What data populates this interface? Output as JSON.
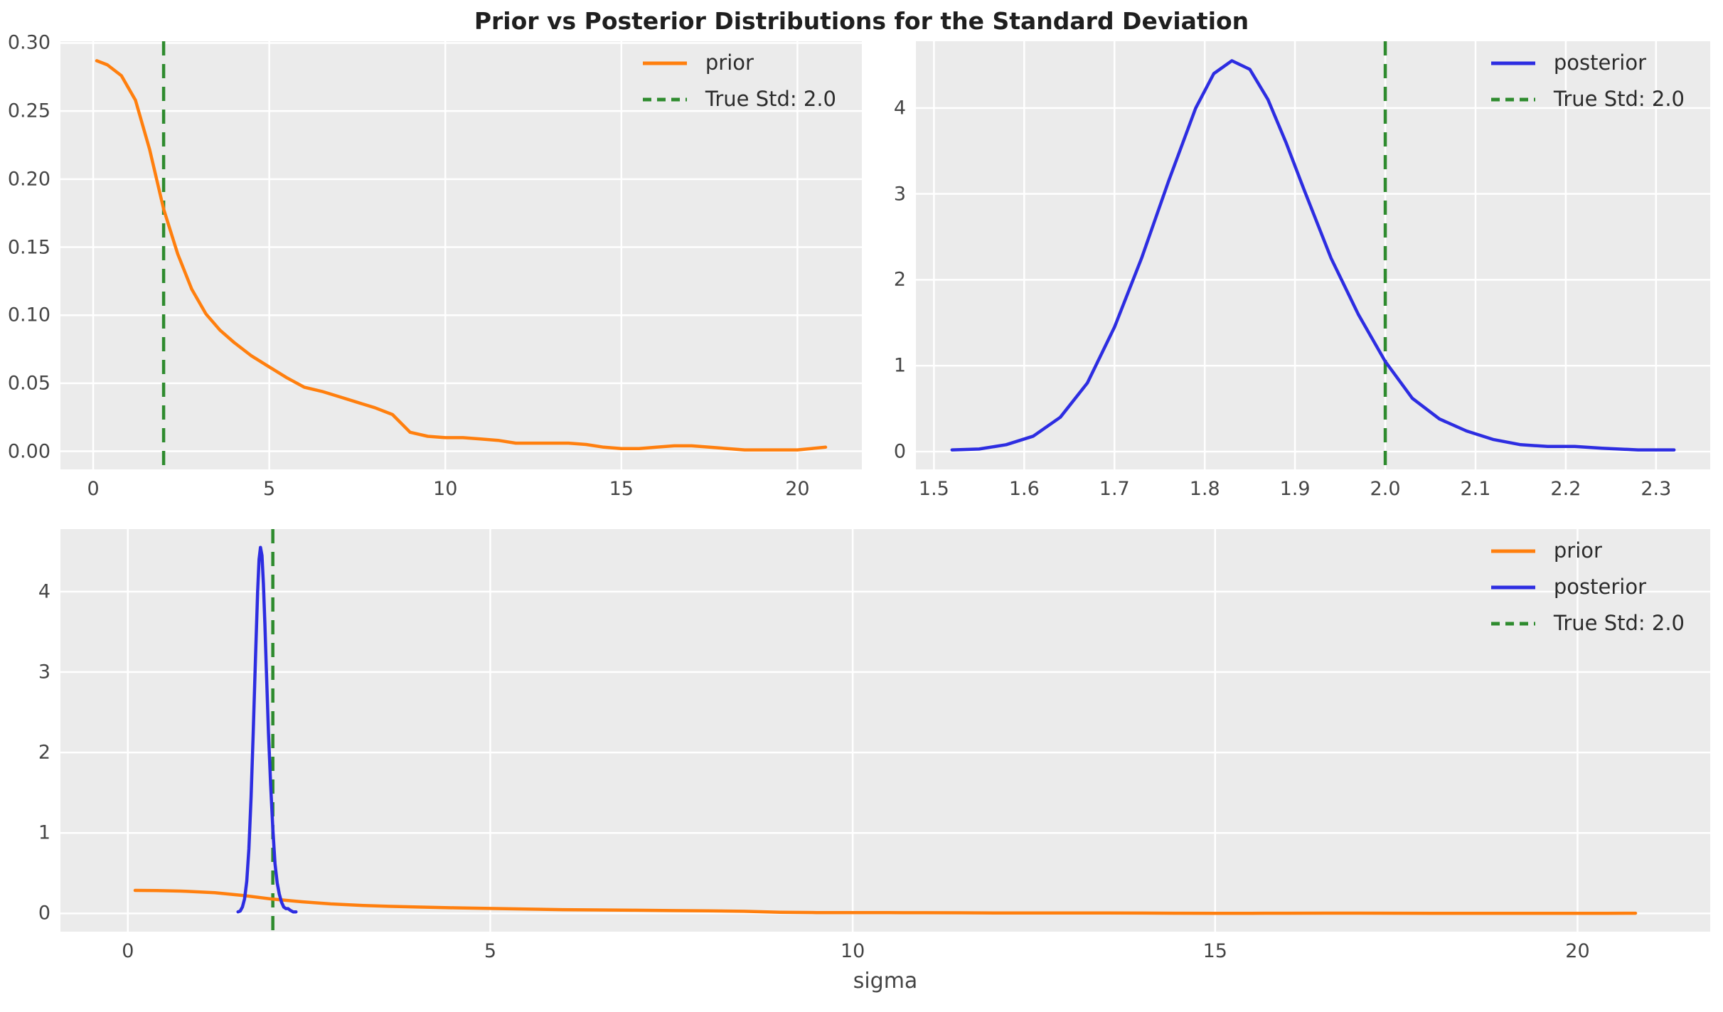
{
  "title": "Prior vs Posterior Distributions for the Standard Deviation",
  "chart_data": {
    "type": "line",
    "style": {
      "axes_bg": "#ebebeb",
      "grid_color": "#ffffff",
      "prior_color": "#ff7f0e",
      "posterior_color": "#2d2de1",
      "true_std_color": "#2e8b2e",
      "tick_color": "#454545"
    },
    "series_data": {
      "prior": {
        "x": [
          0.1,
          0.4,
          0.8,
          1.2,
          1.6,
          2.0,
          2.4,
          2.8,
          3.2,
          3.6,
          4.0,
          4.5,
          5.0,
          5.5,
          6.0,
          6.5,
          7.0,
          7.5,
          8.0,
          8.5,
          9.0,
          9.5,
          10.0,
          10.5,
          11.0,
          11.5,
          12.0,
          12.5,
          13.0,
          13.5,
          14.0,
          14.5,
          15.0,
          15.5,
          16.0,
          16.5,
          17.0,
          17.5,
          18.0,
          18.5,
          19.0,
          19.5,
          20.0,
          20.4,
          20.8
        ],
        "y": [
          0.287,
          0.284,
          0.276,
          0.258,
          0.222,
          0.178,
          0.145,
          0.119,
          0.101,
          0.089,
          0.08,
          0.07,
          0.062,
          0.054,
          0.047,
          0.044,
          0.04,
          0.036,
          0.032,
          0.027,
          0.014,
          0.011,
          0.01,
          0.01,
          0.009,
          0.008,
          0.006,
          0.006,
          0.006,
          0.006,
          0.005,
          0.003,
          0.002,
          0.002,
          0.003,
          0.004,
          0.004,
          0.003,
          0.002,
          0.001,
          0.001,
          0.001,
          0.001,
          0.002,
          0.003
        ]
      },
      "posterior": {
        "x": [
          1.52,
          1.55,
          1.58,
          1.61,
          1.64,
          1.67,
          1.7,
          1.73,
          1.76,
          1.79,
          1.81,
          1.83,
          1.85,
          1.87,
          1.89,
          1.91,
          1.94,
          1.97,
          2.0,
          2.03,
          2.06,
          2.09,
          2.12,
          2.15,
          2.18,
          2.21,
          2.24,
          2.28,
          2.32
        ],
        "y": [
          0.02,
          0.03,
          0.08,
          0.18,
          0.4,
          0.8,
          1.45,
          2.25,
          3.15,
          4.0,
          4.4,
          4.55,
          4.45,
          4.1,
          3.6,
          3.05,
          2.25,
          1.6,
          1.05,
          0.62,
          0.38,
          0.24,
          0.14,
          0.08,
          0.06,
          0.06,
          0.04,
          0.02,
          0.02
        ]
      }
    },
    "charts": [
      {
        "name": "prior-plot",
        "xlim": [
          -0.93,
          21.83
        ],
        "ylim": [
          -0.0133,
          0.3013
        ],
        "xticks": {
          "values": [
            0,
            5,
            10,
            15,
            20
          ],
          "labels": [
            "0",
            "5",
            "10",
            "15",
            "20"
          ]
        },
        "yticks": {
          "values": [
            0,
            0.05,
            0.1,
            0.15,
            0.2,
            0.25,
            0.3
          ],
          "labels": [
            "0.00",
            "0.05",
            "0.10",
            "0.15",
            "0.20",
            "0.25",
            "0.30"
          ]
        },
        "series": [
          {
            "name": "prior",
            "color": "#ff7f0e",
            "data": "prior"
          }
        ],
        "vline": {
          "x": 2.0,
          "color": "#2e8b2e",
          "label": "True Std: 2.0"
        },
        "legend": [
          {
            "label": "prior",
            "color": "#ff7f0e",
            "dash": false
          },
          {
            "label": "True Std: 2.0",
            "color": "#2e8b2e",
            "dash": true
          }
        ],
        "xlabel": ""
      },
      {
        "name": "posterior-plot",
        "xlim": [
          1.48,
          2.36
        ],
        "ylim": [
          -0.207,
          4.777
        ],
        "xticks": {
          "values": [
            1.5,
            1.6,
            1.7,
            1.8,
            1.9,
            2.0,
            2.1,
            2.2,
            2.3
          ],
          "labels": [
            "1.5",
            "1.6",
            "1.7",
            "1.8",
            "1.9",
            "2.0",
            "2.1",
            "2.2",
            "2.3"
          ]
        },
        "yticks": {
          "values": [
            0,
            1,
            2,
            3,
            4
          ],
          "labels": [
            "0",
            "1",
            "2",
            "3",
            "4"
          ]
        },
        "series": [
          {
            "name": "posterior",
            "color": "#2d2de1",
            "data": "posterior"
          }
        ],
        "vline": {
          "x": 2.0,
          "color": "#2e8b2e",
          "label": "True Std: 2.0"
        },
        "legend": [
          {
            "label": "posterior",
            "color": "#2d2de1",
            "dash": false
          },
          {
            "label": "True Std: 2.0",
            "color": "#2e8b2e",
            "dash": true
          }
        ],
        "xlabel": ""
      },
      {
        "name": "combined-plot",
        "xlim": [
          -0.93,
          21.83
        ],
        "ylim": [
          -0.226,
          4.777
        ],
        "xticks": {
          "values": [
            0,
            5,
            10,
            15,
            20
          ],
          "labels": [
            "0",
            "5",
            "10",
            "15",
            "20"
          ]
        },
        "yticks": {
          "values": [
            0,
            1,
            2,
            3,
            4
          ],
          "labels": [
            "0",
            "1",
            "2",
            "3",
            "4"
          ]
        },
        "series": [
          {
            "name": "prior",
            "color": "#ff7f0e",
            "data": "prior"
          },
          {
            "name": "posterior",
            "color": "#2d2de1",
            "data": "posterior"
          }
        ],
        "vline": {
          "x": 2.0,
          "color": "#2e8b2e",
          "label": "True Std: 2.0"
        },
        "legend": [
          {
            "label": "prior",
            "color": "#ff7f0e",
            "dash": false
          },
          {
            "label": "posterior",
            "color": "#2d2de1",
            "dash": false
          },
          {
            "label": "True Std: 2.0",
            "color": "#2e8b2e",
            "dash": true
          }
        ],
        "xlabel": "sigma"
      }
    ]
  }
}
